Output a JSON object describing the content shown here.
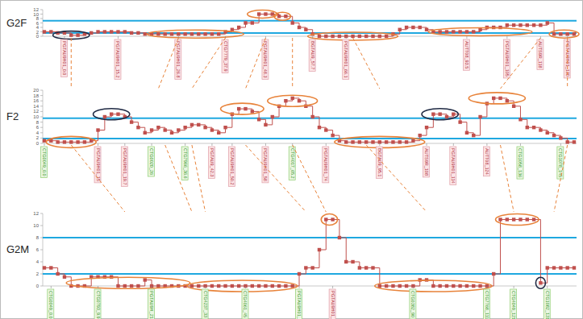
{
  "chart_data": [
    {
      "type": "line",
      "title": "G2F",
      "color": "#c0504d",
      "marker": "square",
      "line_style": "step",
      "tick_labels": "y",
      "ylim": [
        0,
        12
      ],
      "yticks": [
        0,
        2,
        4,
        6,
        8,
        10,
        12
      ],
      "thresholds": [
        7,
        1.5
      ],
      "values": [
        2,
        2,
        1.5,
        1.5,
        0.5,
        0.5,
        1,
        1.5,
        2,
        2,
        2,
        2,
        2,
        1.5,
        1.5,
        1,
        1,
        1,
        1,
        1,
        1,
        1,
        1,
        1,
        1,
        1,
        1,
        2,
        3,
        4,
        6,
        6,
        10,
        10,
        10,
        9,
        9,
        6,
        4,
        3,
        1,
        0,
        0,
        0,
        0,
        0,
        0,
        0,
        0,
        0,
        0,
        0,
        1,
        3,
        4,
        4,
        4,
        3,
        2,
        2,
        2,
        2,
        2,
        2,
        2,
        3,
        4,
        4,
        4,
        5,
        5,
        5,
        5,
        5,
        5,
        6,
        1,
        1,
        1,
        1
      ],
      "highlights": [
        {
          "start": 2,
          "end": 6,
          "level": 0.5,
          "color": "black"
        },
        {
          "start": 16,
          "end": 29,
          "level": 1,
          "color": "orange"
        },
        {
          "start": 31,
          "end": 34,
          "level": 10,
          "color": "orange"
        },
        {
          "start": 35,
          "end": 36,
          "level": 9,
          "color": "orange"
        },
        {
          "start": 40,
          "end": 52,
          "level": 0,
          "color": "orange"
        },
        {
          "start": 58,
          "end": 72,
          "level": 2,
          "color": "orange"
        },
        {
          "start": 76,
          "end": 79,
          "level": 1,
          "color": "orange"
        }
      ],
      "markers": [
        {
          "index": 3,
          "label": "PGTAU9H01_0.0",
          "color": "pink"
        },
        {
          "index": 11,
          "label": "PGTAU9H01_15.2",
          "color": "pink"
        },
        {
          "index": 20,
          "label": "PGTAU9H01_26.8",
          "color": "pink"
        },
        {
          "index": 27,
          "label": "CTG7779_37.9",
          "color": "pink"
        },
        {
          "index": 33,
          "label": "PGTAU9H01_48.3",
          "color": "pink"
        },
        {
          "index": 40,
          "label": "BGTAU9_57.7",
          "color": "pink"
        },
        {
          "index": 45,
          "label": "PGTAU9H01_66.1",
          "color": "pink"
        },
        {
          "index": 63,
          "label": "AUTT08_93.5",
          "color": "pink"
        },
        {
          "index": 69,
          "label": "PGTAU9H01_105",
          "color": "pink"
        },
        {
          "index": 74,
          "label": "AUTS9R_118",
          "color": "pink"
        },
        {
          "index": 78,
          "label": "PGTAU9H01_130",
          "color": "pink"
        }
      ]
    },
    {
      "type": "line",
      "title": "F2",
      "color": "#c0504d",
      "marker": "square",
      "line_style": "step",
      "tick_labels": "y",
      "ylim": [
        0,
        20
      ],
      "yticks": [
        0,
        2,
        4,
        6,
        8,
        10,
        12,
        14,
        16,
        18,
        20
      ],
      "thresholds": [
        9.5,
        1.8
      ],
      "values": [
        1,
        1,
        0.5,
        0.5,
        0.5,
        0.5,
        0.5,
        1,
        5,
        10,
        11,
        11,
        10,
        8,
        6,
        4,
        5,
        6,
        5,
        4,
        5,
        6,
        7,
        7,
        6,
        5,
        4,
        6,
        11,
        13,
        13,
        12,
        9,
        7,
        10,
        14,
        16,
        17,
        16,
        14,
        10,
        6,
        5,
        3,
        1,
        0.5,
        0.5,
        0.5,
        0.5,
        0.5,
        0.5,
        0.5,
        0.5,
        0.5,
        0.5,
        1,
        3,
        6,
        11,
        11,
        10,
        11,
        8,
        4,
        3,
        10,
        15,
        17,
        17,
        16,
        14,
        9,
        6,
        6,
        5,
        4,
        3,
        2,
        0.5,
        0.5
      ],
      "highlights": [
        {
          "start": 1,
          "end": 7,
          "level": 0.5,
          "color": "orange"
        },
        {
          "start": 8,
          "end": 12,
          "level": 11,
          "color": "black"
        },
        {
          "start": 27,
          "end": 32,
          "level": 13,
          "color": "orange"
        },
        {
          "start": 34,
          "end": 40,
          "level": 16,
          "color": "orange"
        },
        {
          "start": 44,
          "end": 56,
          "level": 0.5,
          "color": "orange"
        },
        {
          "start": 57,
          "end": 61,
          "level": 11,
          "color": "black"
        },
        {
          "start": 64,
          "end": 71,
          "level": 17,
          "color": "orange"
        }
      ],
      "markers": [
        {
          "index": 0,
          "label": "CTG0049_0.0",
          "color": "green"
        },
        {
          "index": 8,
          "label": "PGTAU9H01_15",
          "color": "pink"
        },
        {
          "index": 12,
          "label": "PGTAU9H01_19.7",
          "color": "pink"
        },
        {
          "index": 16,
          "label": "CTG0020_26",
          "color": "green"
        },
        {
          "index": 21,
          "label": "CTG7966_36.6",
          "color": "green"
        },
        {
          "index": 25,
          "label": "PGTAU9_42.3",
          "color": "pink"
        },
        {
          "index": 28,
          "label": "PGTAU9H01_50.2",
          "color": "pink"
        },
        {
          "index": 33,
          "label": "PGTAU9H01_58",
          "color": "pink"
        },
        {
          "index": 37,
          "label": "CTG4017_65.2",
          "color": "green"
        },
        {
          "index": 42,
          "label": "PGTAU9H01_74",
          "color": "pink"
        },
        {
          "index": 50,
          "label": "BGTAU9_95.1",
          "color": "pink"
        },
        {
          "index": 57,
          "label": "AUTS9R_108",
          "color": "pink"
        },
        {
          "index": 61,
          "label": "PGTAU9H01_114",
          "color": "pink"
        },
        {
          "index": 66,
          "label": "AUTT08_124",
          "color": "pink"
        },
        {
          "index": 71,
          "label": "CTG1058_136",
          "color": "green"
        },
        {
          "index": 77,
          "label": "CTG1078_145",
          "color": "green"
        }
      ]
    },
    {
      "type": "line",
      "title": "G2M",
      "color": "#c0504d",
      "marker": "square",
      "line_style": "step",
      "tick_labels": "y",
      "ylim": [
        0,
        12
      ],
      "yticks": [
        0,
        2,
        4,
        6,
        8,
        10,
        12
      ],
      "thresholds": [
        8,
        2
      ],
      "values": [
        3,
        3,
        2,
        1.5,
        0,
        0,
        0,
        1.5,
        1.5,
        1.5,
        1.5,
        0,
        0,
        0,
        0,
        1,
        0,
        0,
        0,
        0,
        0,
        0,
        0,
        0,
        0,
        0,
        0,
        0,
        0,
        0,
        0,
        0,
        0,
        0,
        0,
        0,
        0,
        0,
        2,
        3,
        3,
        6,
        11,
        11,
        8,
        4,
        4,
        3,
        3,
        3,
        0,
        0,
        0,
        0,
        0,
        0,
        1,
        1,
        0,
        0,
        0,
        0,
        0,
        0,
        0,
        0,
        0,
        2,
        11,
        11,
        11,
        11,
        11,
        11,
        0.5,
        3,
        3,
        3,
        3,
        3
      ],
      "highlights": [
        {
          "start": 4,
          "end": 21,
          "level": 0.5,
          "color": "orange"
        },
        {
          "start": 22,
          "end": 37,
          "level": 0,
          "color": "orange"
        },
        {
          "start": 42,
          "end": 43,
          "level": 11,
          "color": "orange"
        },
        {
          "start": 50,
          "end": 66,
          "level": 0,
          "color": "orange"
        },
        {
          "start": 68,
          "end": 73,
          "level": 11,
          "color": "orange"
        },
        {
          "start": 74,
          "end": 74,
          "level": 0.5,
          "color": "black"
        }
      ],
      "markers": [
        {
          "index": 1,
          "label": "CTG0049_0.0",
          "color": "green"
        },
        {
          "index": 8,
          "label": "CTG0793_9.9",
          "color": "green"
        },
        {
          "index": 16,
          "label": "PGTAU9H_21",
          "color": "green"
        },
        {
          "index": 24,
          "label": "CTG4237_33",
          "color": "green"
        },
        {
          "index": 30,
          "label": "CTG4061_45",
          "color": "green"
        },
        {
          "index": 38,
          "label": "PGTAU9H01_61",
          "color": "green"
        },
        {
          "index": 43,
          "label": "PGTAU9H01_67",
          "color": "pink"
        },
        {
          "index": 55,
          "label": "CTG0382_90",
          "color": "green"
        },
        {
          "index": 66,
          "label": "CTG7768_111",
          "color": "green"
        },
        {
          "index": 70,
          "label": "CTG4049_121",
          "color": "green"
        },
        {
          "index": 75,
          "label": "CTG1082_131",
          "color": "green"
        }
      ]
    }
  ],
  "links": [
    {
      "from": 0,
      "to": 1,
      "pairs": [
        [
          4,
          4
        ],
        [
          20,
          17
        ],
        [
          27,
          22
        ],
        [
          33,
          30
        ],
        [
          37,
          37
        ],
        [
          46,
          50
        ],
        [
          74,
          68
        ],
        [
          78,
          78
        ]
      ]
    },
    {
      "from": 1,
      "to": 2,
      "pairs": [
        [
          4,
          12
        ],
        [
          18,
          22
        ],
        [
          22,
          24
        ],
        [
          30,
          39
        ],
        [
          37,
          42
        ],
        [
          48,
          57
        ],
        [
          68,
          70
        ],
        [
          78,
          76
        ]
      ]
    }
  ]
}
